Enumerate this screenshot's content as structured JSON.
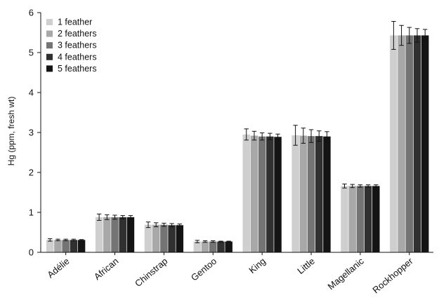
{
  "chart_data": {
    "type": "bar",
    "title": "",
    "xlabel": "",
    "ylabel": "Hg (ppm, fresh wt)",
    "ylim": [
      0,
      6
    ],
    "yticks": [
      0,
      1,
      2,
      3,
      4,
      5,
      6
    ],
    "grid": false,
    "legend_position": "top-left",
    "categories": [
      "Adélie",
      "African",
      "Chinstrap",
      "Gentoo",
      "King",
      "Little",
      "Magellanic",
      "Rockhopper"
    ],
    "series": [
      {
        "name": "1 feather",
        "color": "#cfcfcf",
        "values": [
          0.31,
          0.88,
          0.69,
          0.27,
          2.95,
          2.93,
          1.66,
          5.43
        ],
        "errors": [
          0.03,
          0.08,
          0.07,
          0.03,
          0.14,
          0.25,
          0.05,
          0.35
        ]
      },
      {
        "name": "2 feathers",
        "color": "#a8a8a8",
        "values": [
          0.31,
          0.88,
          0.69,
          0.27,
          2.92,
          2.92,
          1.66,
          5.43
        ],
        "errors": [
          0.02,
          0.06,
          0.05,
          0.02,
          0.11,
          0.19,
          0.04,
          0.25
        ]
      },
      {
        "name": "3 feathers",
        "color": "#747474",
        "values": [
          0.31,
          0.88,
          0.69,
          0.27,
          2.9,
          2.91,
          1.66,
          5.43
        ],
        "errors": [
          0.02,
          0.05,
          0.04,
          0.02,
          0.09,
          0.16,
          0.03,
          0.2
        ]
      },
      {
        "name": "4 feathers",
        "color": "#303030",
        "values": [
          0.31,
          0.88,
          0.68,
          0.27,
          2.9,
          2.91,
          1.66,
          5.43
        ],
        "errors": [
          0.02,
          0.04,
          0.04,
          0.01,
          0.08,
          0.13,
          0.03,
          0.17
        ]
      },
      {
        "name": "5 feathers",
        "color": "#141414",
        "values": [
          0.31,
          0.88,
          0.68,
          0.27,
          2.89,
          2.9,
          1.66,
          5.43
        ],
        "errors": [
          0.01,
          0.04,
          0.03,
          0.01,
          0.07,
          0.12,
          0.03,
          0.15
        ]
      }
    ]
  }
}
